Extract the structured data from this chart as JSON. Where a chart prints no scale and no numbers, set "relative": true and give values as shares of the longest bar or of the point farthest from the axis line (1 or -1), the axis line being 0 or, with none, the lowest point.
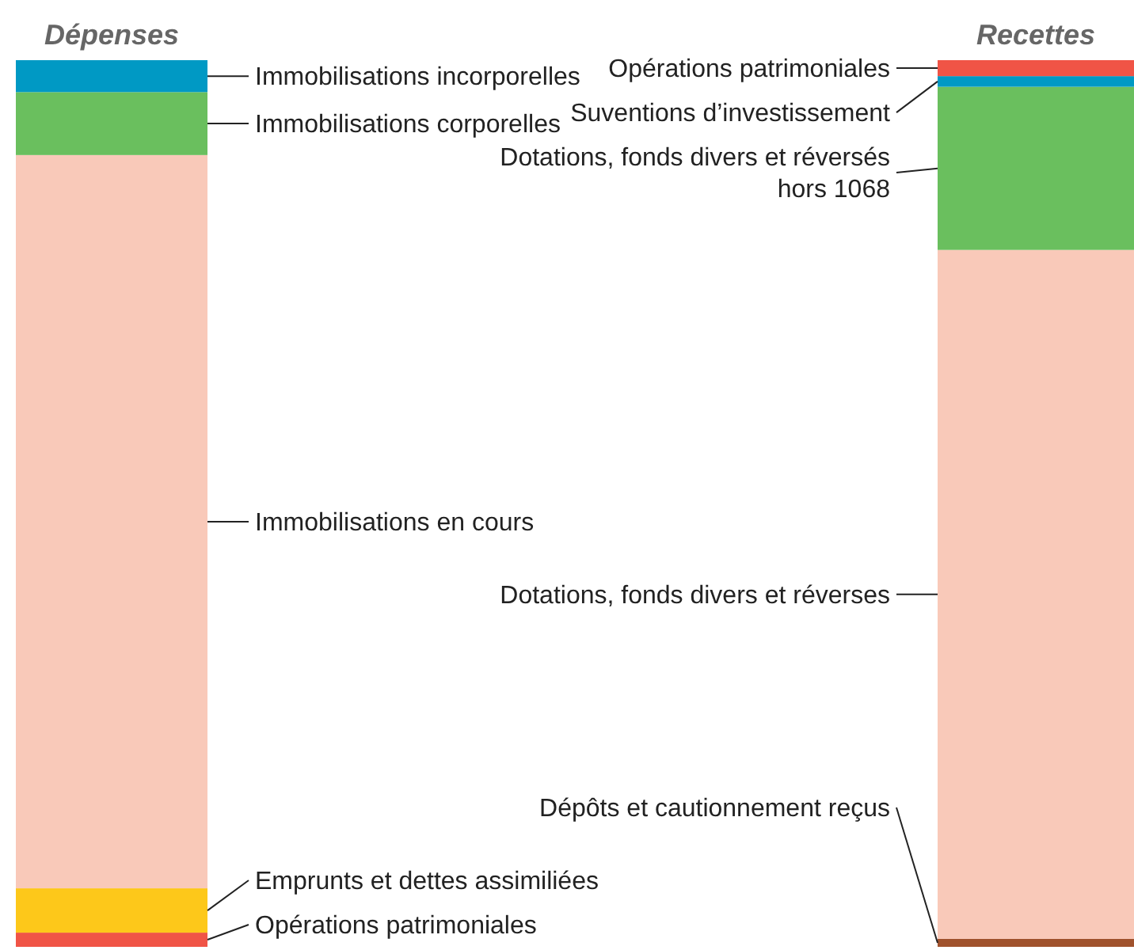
{
  "chart_data": {
    "type": "bar",
    "stacked": true,
    "relative": true,
    "categories": [
      "Dépenses",
      "Recettes"
    ],
    "series": [
      {
        "name": "Opérations patrimoniales",
        "color": "#f05446",
        "values": [
          0.016,
          null
        ]
      },
      {
        "name": "Emprunts et dettes assimiliées",
        "color": "#fdc81a",
        "values": [
          0.05,
          null
        ]
      },
      {
        "name": "Immobilisations en cours",
        "color": "#f9c9b9",
        "values": [
          0.827,
          null
        ]
      },
      {
        "name": "Immobilisations corporelles",
        "color": "#6abf5e",
        "values": [
          0.071,
          null
        ]
      },
      {
        "name": "Immobilisations incorporelles",
        "color": "#0099c4",
        "values": [
          0.036,
          null
        ]
      },
      {
        "name": "Dépôts et cautionnement reçus",
        "color": "#a0522d",
        "values": [
          null,
          0.009
        ]
      },
      {
        "name": "Dotations, fonds divers et réverses",
        "color": "#f9c9b9",
        "values": [
          null,
          0.777
        ]
      },
      {
        "name": "Dotations, fonds divers et réversés hors 1068",
        "color": "#6abf5e",
        "values": [
          null,
          0.184
        ]
      },
      {
        "name": "Suventions d’investissement",
        "color": "#0099c4",
        "values": [
          null,
          0.012
        ]
      },
      {
        "name": "Opérations patrimoniales",
        "color": "#f05446",
        "values": [
          null,
          0.018
        ]
      }
    ]
  }
}
